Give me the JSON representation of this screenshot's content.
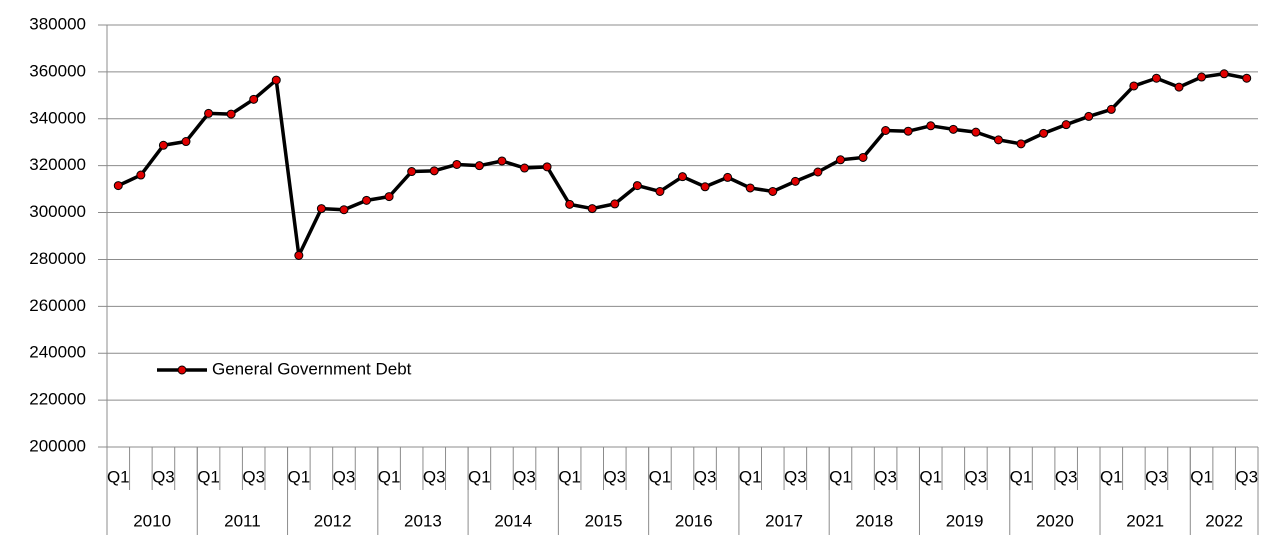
{
  "chart_data": {
    "type": "line",
    "categories": [
      "Q1",
      null,
      "Q3",
      null,
      "Q1",
      null,
      "Q3",
      null,
      "Q1",
      null,
      "Q3",
      null,
      "Q1",
      null,
      "Q3",
      null,
      "Q1",
      null,
      "Q3",
      null,
      "Q1",
      null,
      "Q3",
      null,
      "Q1",
      null,
      "Q3",
      null,
      "Q1",
      null,
      "Q3",
      null,
      "Q1",
      null,
      "Q3",
      null,
      "Q1",
      null,
      "Q3",
      null,
      "Q1",
      null,
      "Q3",
      null,
      "Q1",
      null,
      "Q3",
      null,
      "Q1",
      null,
      "Q3"
    ],
    "category_groups": [
      "2010",
      "2011",
      "2012",
      "2013",
      "2014",
      "2015",
      "2016",
      "2017",
      "2018",
      "2019",
      "2020",
      "2021",
      "2022"
    ],
    "series": [
      {
        "name": "General Government Debt",
        "color": "#000000",
        "marker_color": "#e00000",
        "values": [
          311500,
          316000,
          328700,
          330300,
          342300,
          342000,
          348300,
          356500,
          281700,
          301700,
          301200,
          305200,
          306800,
          317500,
          317800,
          320500,
          320000,
          322000,
          319000,
          319500,
          303500,
          301700,
          303700,
          311500,
          309000,
          315300,
          311000,
          315000,
          310500,
          309000,
          313300,
          317300,
          322500,
          323500,
          335000,
          334700,
          337000,
          335500,
          334300,
          331000,
          329300,
          333800,
          337500,
          341000,
          344000,
          354000,
          357300,
          353500,
          357800,
          359200,
          357300
        ]
      }
    ],
    "ylim": [
      200000,
      380000
    ],
    "yticks": [
      200000,
      220000,
      240000,
      260000,
      280000,
      300000,
      320000,
      340000,
      360000,
      380000
    ],
    "grid": true,
    "legend": "left"
  }
}
